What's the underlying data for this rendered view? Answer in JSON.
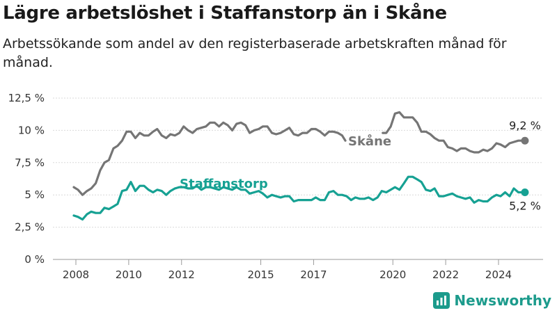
{
  "header": {
    "title": "Lägre arbetslöshet i Staffanstorp än i Skåne",
    "subtitle": "Arbetssökande som andel av den registerbaserade arbetskraften månad för månad."
  },
  "brand": {
    "name": "Newsworthy",
    "icon": "bar-chart-logo-icon",
    "color": "#1c9b8c"
  },
  "chart_data": {
    "type": "line",
    "xlim": [
      2007.5,
      2025.6
    ],
    "ylim": [
      0,
      12.5
    ],
    "yticks": [
      0,
      2.5,
      5,
      7.5,
      10,
      12.5
    ],
    "ytick_labels": [
      "0 %",
      "2,5 %",
      "5 %",
      "7,5 %",
      "10 %",
      "12,5 %"
    ],
    "xticks": [
      2008,
      2010,
      2012,
      2015,
      2017,
      2020,
      2022,
      2024
    ],
    "xtick_labels": [
      "2008",
      "2010",
      "2012",
      "2015",
      "2017",
      "2020",
      "2022",
      "2024"
    ],
    "grid": "horizontal",
    "series": [
      {
        "name": "Skåne",
        "color": "#757575",
        "end_label": "9,2 %",
        "gap": [
          2018.25,
          2019.55
        ],
        "points": [
          [
            2007.92,
            5.6
          ],
          [
            2008.08,
            5.4
          ],
          [
            2008.25,
            5.0
          ],
          [
            2008.42,
            5.3
          ],
          [
            2008.58,
            5.5
          ],
          [
            2008.75,
            5.9
          ],
          [
            2008.92,
            6.9
          ],
          [
            2009.08,
            7.5
          ],
          [
            2009.25,
            7.7
          ],
          [
            2009.42,
            8.6
          ],
          [
            2009.58,
            8.8
          ],
          [
            2009.75,
            9.2
          ],
          [
            2009.92,
            9.9
          ],
          [
            2010.08,
            9.9
          ],
          [
            2010.25,
            9.4
          ],
          [
            2010.42,
            9.8
          ],
          [
            2010.58,
            9.6
          ],
          [
            2010.75,
            9.6
          ],
          [
            2010.92,
            9.9
          ],
          [
            2011.08,
            10.1
          ],
          [
            2011.25,
            9.6
          ],
          [
            2011.42,
            9.4
          ],
          [
            2011.58,
            9.7
          ],
          [
            2011.75,
            9.6
          ],
          [
            2011.92,
            9.8
          ],
          [
            2012.08,
            10.3
          ],
          [
            2012.25,
            10.0
          ],
          [
            2012.42,
            9.8
          ],
          [
            2012.58,
            10.1
          ],
          [
            2012.75,
            10.2
          ],
          [
            2012.92,
            10.3
          ],
          [
            2013.08,
            10.6
          ],
          [
            2013.25,
            10.6
          ],
          [
            2013.42,
            10.3
          ],
          [
            2013.58,
            10.6
          ],
          [
            2013.75,
            10.4
          ],
          [
            2013.92,
            10.0
          ],
          [
            2014.08,
            10.5
          ],
          [
            2014.25,
            10.6
          ],
          [
            2014.42,
            10.4
          ],
          [
            2014.58,
            9.8
          ],
          [
            2014.75,
            10.0
          ],
          [
            2014.92,
            10.1
          ],
          [
            2015.08,
            10.3
          ],
          [
            2015.25,
            10.3
          ],
          [
            2015.42,
            9.8
          ],
          [
            2015.58,
            9.7
          ],
          [
            2015.75,
            9.8
          ],
          [
            2015.92,
            10.0
          ],
          [
            2016.08,
            10.2
          ],
          [
            2016.25,
            9.7
          ],
          [
            2016.42,
            9.6
          ],
          [
            2016.58,
            9.8
          ],
          [
            2016.75,
            9.8
          ],
          [
            2016.92,
            10.1
          ],
          [
            2017.08,
            10.1
          ],
          [
            2017.25,
            9.9
          ],
          [
            2017.42,
            9.6
          ],
          [
            2017.58,
            9.9
          ],
          [
            2017.75,
            9.9
          ],
          [
            2017.92,
            9.8
          ],
          [
            2018.08,
            9.6
          ],
          [
            2018.2,
            9.2
          ],
          [
            2019.62,
            9.8
          ],
          [
            2019.75,
            9.8
          ],
          [
            2019.92,
            10.3
          ],
          [
            2020.08,
            11.3
          ],
          [
            2020.25,
            11.4
          ],
          [
            2020.42,
            11.0
          ],
          [
            2020.58,
            11.0
          ],
          [
            2020.75,
            11.0
          ],
          [
            2020.92,
            10.6
          ],
          [
            2021.08,
            9.9
          ],
          [
            2021.25,
            9.9
          ],
          [
            2021.42,
            9.7
          ],
          [
            2021.58,
            9.4
          ],
          [
            2021.75,
            9.2
          ],
          [
            2021.92,
            9.2
          ],
          [
            2022.08,
            8.7
          ],
          [
            2022.25,
            8.6
          ],
          [
            2022.42,
            8.4
          ],
          [
            2022.58,
            8.6
          ],
          [
            2022.75,
            8.6
          ],
          [
            2022.92,
            8.4
          ],
          [
            2023.08,
            8.3
          ],
          [
            2023.25,
            8.3
          ],
          [
            2023.42,
            8.5
          ],
          [
            2023.58,
            8.4
          ],
          [
            2023.75,
            8.6
          ],
          [
            2023.92,
            9.0
          ],
          [
            2024.08,
            8.9
          ],
          [
            2024.25,
            8.7
          ],
          [
            2024.42,
            9.0
          ],
          [
            2024.58,
            9.1
          ],
          [
            2024.75,
            9.2
          ],
          [
            2025.0,
            9.2
          ]
        ]
      },
      {
        "name": "Staffanstorp",
        "color": "#16a193",
        "end_label": "5,2 %",
        "points": [
          [
            2007.92,
            3.4
          ],
          [
            2008.08,
            3.3
          ],
          [
            2008.25,
            3.1
          ],
          [
            2008.42,
            3.5
          ],
          [
            2008.58,
            3.7
          ],
          [
            2008.75,
            3.6
          ],
          [
            2008.92,
            3.6
          ],
          [
            2009.08,
            4.0
          ],
          [
            2009.25,
            3.9
          ],
          [
            2009.42,
            4.1
          ],
          [
            2009.58,
            4.3
          ],
          [
            2009.75,
            5.3
          ],
          [
            2009.92,
            5.4
          ],
          [
            2010.08,
            6.0
          ],
          [
            2010.25,
            5.3
          ],
          [
            2010.42,
            5.7
          ],
          [
            2010.58,
            5.7
          ],
          [
            2010.75,
            5.4
          ],
          [
            2010.92,
            5.2
          ],
          [
            2011.08,
            5.4
          ],
          [
            2011.25,
            5.3
          ],
          [
            2011.42,
            5.0
          ],
          [
            2011.58,
            5.3
          ],
          [
            2011.75,
            5.5
          ],
          [
            2011.92,
            5.6
          ],
          [
            2012.08,
            5.6
          ],
          [
            2012.25,
            5.5
          ],
          [
            2012.42,
            5.5
          ],
          [
            2012.58,
            5.7
          ],
          [
            2012.75,
            5.4
          ],
          [
            2012.92,
            5.6
          ],
          [
            2013.08,
            5.6
          ],
          [
            2013.25,
            5.5
          ],
          [
            2013.42,
            5.4
          ],
          [
            2013.58,
            5.6
          ],
          [
            2013.75,
            5.5
          ],
          [
            2013.92,
            5.4
          ],
          [
            2014.08,
            5.6
          ],
          [
            2014.25,
            5.4
          ],
          [
            2014.42,
            5.4
          ],
          [
            2014.58,
            5.1
          ],
          [
            2014.75,
            5.2
          ],
          [
            2014.92,
            5.3
          ],
          [
            2015.08,
            5.1
          ],
          [
            2015.25,
            4.8
          ],
          [
            2015.42,
            5.0
          ],
          [
            2015.58,
            4.9
          ],
          [
            2015.75,
            4.8
          ],
          [
            2015.92,
            4.9
          ],
          [
            2016.08,
            4.9
          ],
          [
            2016.25,
            4.5
          ],
          [
            2016.42,
            4.6
          ],
          [
            2016.58,
            4.6
          ],
          [
            2016.75,
            4.6
          ],
          [
            2016.92,
            4.6
          ],
          [
            2017.08,
            4.8
          ],
          [
            2017.25,
            4.6
          ],
          [
            2017.42,
            4.6
          ],
          [
            2017.58,
            5.2
          ],
          [
            2017.75,
            5.3
          ],
          [
            2017.92,
            5.0
          ],
          [
            2018.08,
            5.0
          ],
          [
            2018.25,
            4.9
          ],
          [
            2018.42,
            4.6
          ],
          [
            2018.58,
            4.8
          ],
          [
            2018.75,
            4.7
          ],
          [
            2018.92,
            4.7
          ],
          [
            2019.08,
            4.8
          ],
          [
            2019.25,
            4.6
          ],
          [
            2019.42,
            4.8
          ],
          [
            2019.58,
            5.3
          ],
          [
            2019.75,
            5.2
          ],
          [
            2019.92,
            5.4
          ],
          [
            2020.08,
            5.6
          ],
          [
            2020.25,
            5.4
          ],
          [
            2020.42,
            5.9
          ],
          [
            2020.58,
            6.4
          ],
          [
            2020.75,
            6.4
          ],
          [
            2020.92,
            6.2
          ],
          [
            2021.08,
            6.0
          ],
          [
            2021.25,
            5.4
          ],
          [
            2021.42,
            5.3
          ],
          [
            2021.58,
            5.5
          ],
          [
            2021.75,
            4.9
          ],
          [
            2021.92,
            4.9
          ],
          [
            2022.08,
            5.0
          ],
          [
            2022.25,
            5.1
          ],
          [
            2022.42,
            4.9
          ],
          [
            2022.58,
            4.8
          ],
          [
            2022.75,
            4.7
          ],
          [
            2022.92,
            4.8
          ],
          [
            2023.08,
            4.4
          ],
          [
            2023.25,
            4.6
          ],
          [
            2023.42,
            4.5
          ],
          [
            2023.58,
            4.5
          ],
          [
            2023.75,
            4.8
          ],
          [
            2023.92,
            5.0
          ],
          [
            2024.08,
            4.9
          ],
          [
            2024.25,
            5.2
          ],
          [
            2024.42,
            4.9
          ],
          [
            2024.58,
            5.5
          ],
          [
            2024.75,
            5.2
          ],
          [
            2025.0,
            5.2
          ]
        ]
      }
    ]
  }
}
